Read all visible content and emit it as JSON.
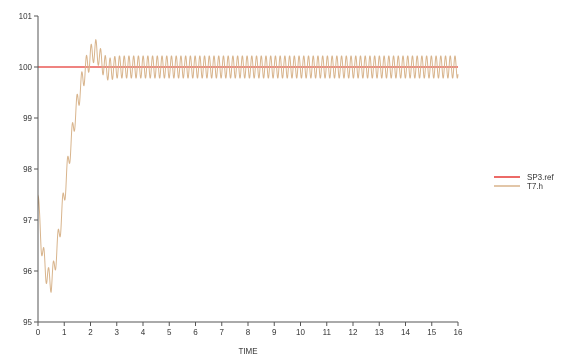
{
  "chart_data": {
    "type": "line",
    "title": "",
    "xlabel": "TIME",
    "ylabel": "",
    "xlim": [
      0,
      16
    ],
    "ylim": [
      95,
      101
    ],
    "xticks": [
      "0",
      "1",
      "2",
      "3",
      "4",
      "5",
      "6",
      "7",
      "8",
      "9",
      "10",
      "11",
      "12",
      "13",
      "14",
      "15",
      "16"
    ],
    "yticks": [
      "95",
      "96",
      "97",
      "98",
      "99",
      "100",
      "101"
    ],
    "grid": false,
    "legend_position": "right",
    "series": [
      {
        "name": "SP3.ref",
        "color": "#e53935",
        "x": [
          0,
          16
        ],
        "y": [
          100,
          100
        ]
      },
      {
        "name": "T7.h",
        "color": "#d8b48c",
        "oscillation_amplitude": 0.22,
        "oscillation_period": 0.18,
        "x": [
          0,
          0.05,
          0.12,
          0.2,
          0.3,
          0.4,
          0.5,
          0.6,
          0.8,
          1.0,
          1.2,
          1.4,
          1.6,
          1.8,
          2.0,
          2.1,
          2.2,
          2.3,
          2.4,
          2.5,
          2.6,
          2.7,
          2.8,
          3.0,
          3.5,
          4.0,
          6.0,
          8.0,
          10.0,
          12.0,
          14.0,
          16.0
        ],
        "y": [
          97.5,
          97.0,
          96.6,
          96.3,
          96.0,
          95.85,
          95.8,
          96.0,
          96.7,
          97.5,
          98.3,
          99.0,
          99.55,
          99.95,
          100.2,
          100.3,
          100.32,
          100.25,
          100.12,
          100.05,
          99.98,
          99.95,
          99.97,
          100.0,
          100.0,
          100.0,
          100.0,
          100.0,
          100.0,
          100.0,
          100.0,
          100.0
        ]
      }
    ]
  }
}
